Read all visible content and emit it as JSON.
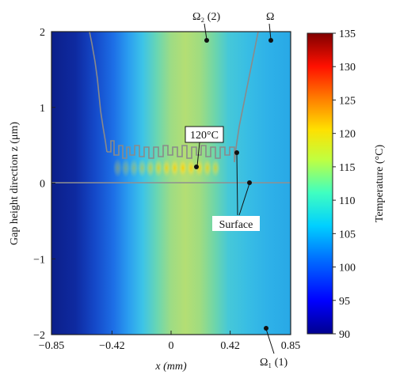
{
  "chart_data": {
    "type": "heatmap",
    "xlabel": "x (mm)",
    "ylabel": "Gap height direction z (μm)",
    "x_ticks": [
      "−0.85",
      "−0.42",
      "0",
      "0.42",
      "0.85"
    ],
    "x_tick_values": [
      -0.85,
      -0.42,
      0,
      0.42,
      0.85
    ],
    "y_ticks": [
      "−2",
      "−1",
      "0",
      "1",
      "2"
    ],
    "y_tick_values": [
      -2,
      -1,
      0,
      1,
      2
    ],
    "xlim": [
      -0.85,
      0.85
    ],
    "ylim": [
      -2,
      2
    ],
    "colorbar": {
      "label": "Temperature (°C)",
      "ticks": [
        "90",
        "95",
        "100",
        "105",
        "110",
        "115",
        "120",
        "125",
        "130",
        "135"
      ],
      "tick_values": [
        90,
        95,
        100,
        105,
        110,
        115,
        120,
        125,
        130,
        135
      ],
      "range": [
        90,
        135
      ]
    },
    "temperature_profile_along_x": {
      "x": [
        -0.85,
        -0.7,
        -0.55,
        -0.45,
        -0.35,
        -0.25,
        -0.15,
        -0.05,
        0.05,
        0.15,
        0.25,
        0.35,
        0.45,
        0.55,
        0.65,
        0.75,
        0.85
      ],
      "temperature": [
        92,
        93,
        95,
        98,
        102,
        106,
        110,
        113,
        115,
        116,
        115,
        113,
        110,
        107,
        106,
        105,
        104
      ]
    },
    "hotspot_row_z": 0.2,
    "surface_line_z": 0,
    "annotations": [
      {
        "text": "Ω₂ (2)",
        "x": 0.27,
        "z": 1.9
      },
      {
        "text": "Ω",
        "x": 0.72,
        "z": 1.9
      },
      {
        "text": "120°C",
        "x": 0.18,
        "z": 0.2
      },
      {
        "text": "Surface",
        "x": 0.5,
        "z": 0.2
      },
      {
        "text": "Ω₁ (1)",
        "x": 0.68,
        "z": -1.9
      }
    ]
  }
}
